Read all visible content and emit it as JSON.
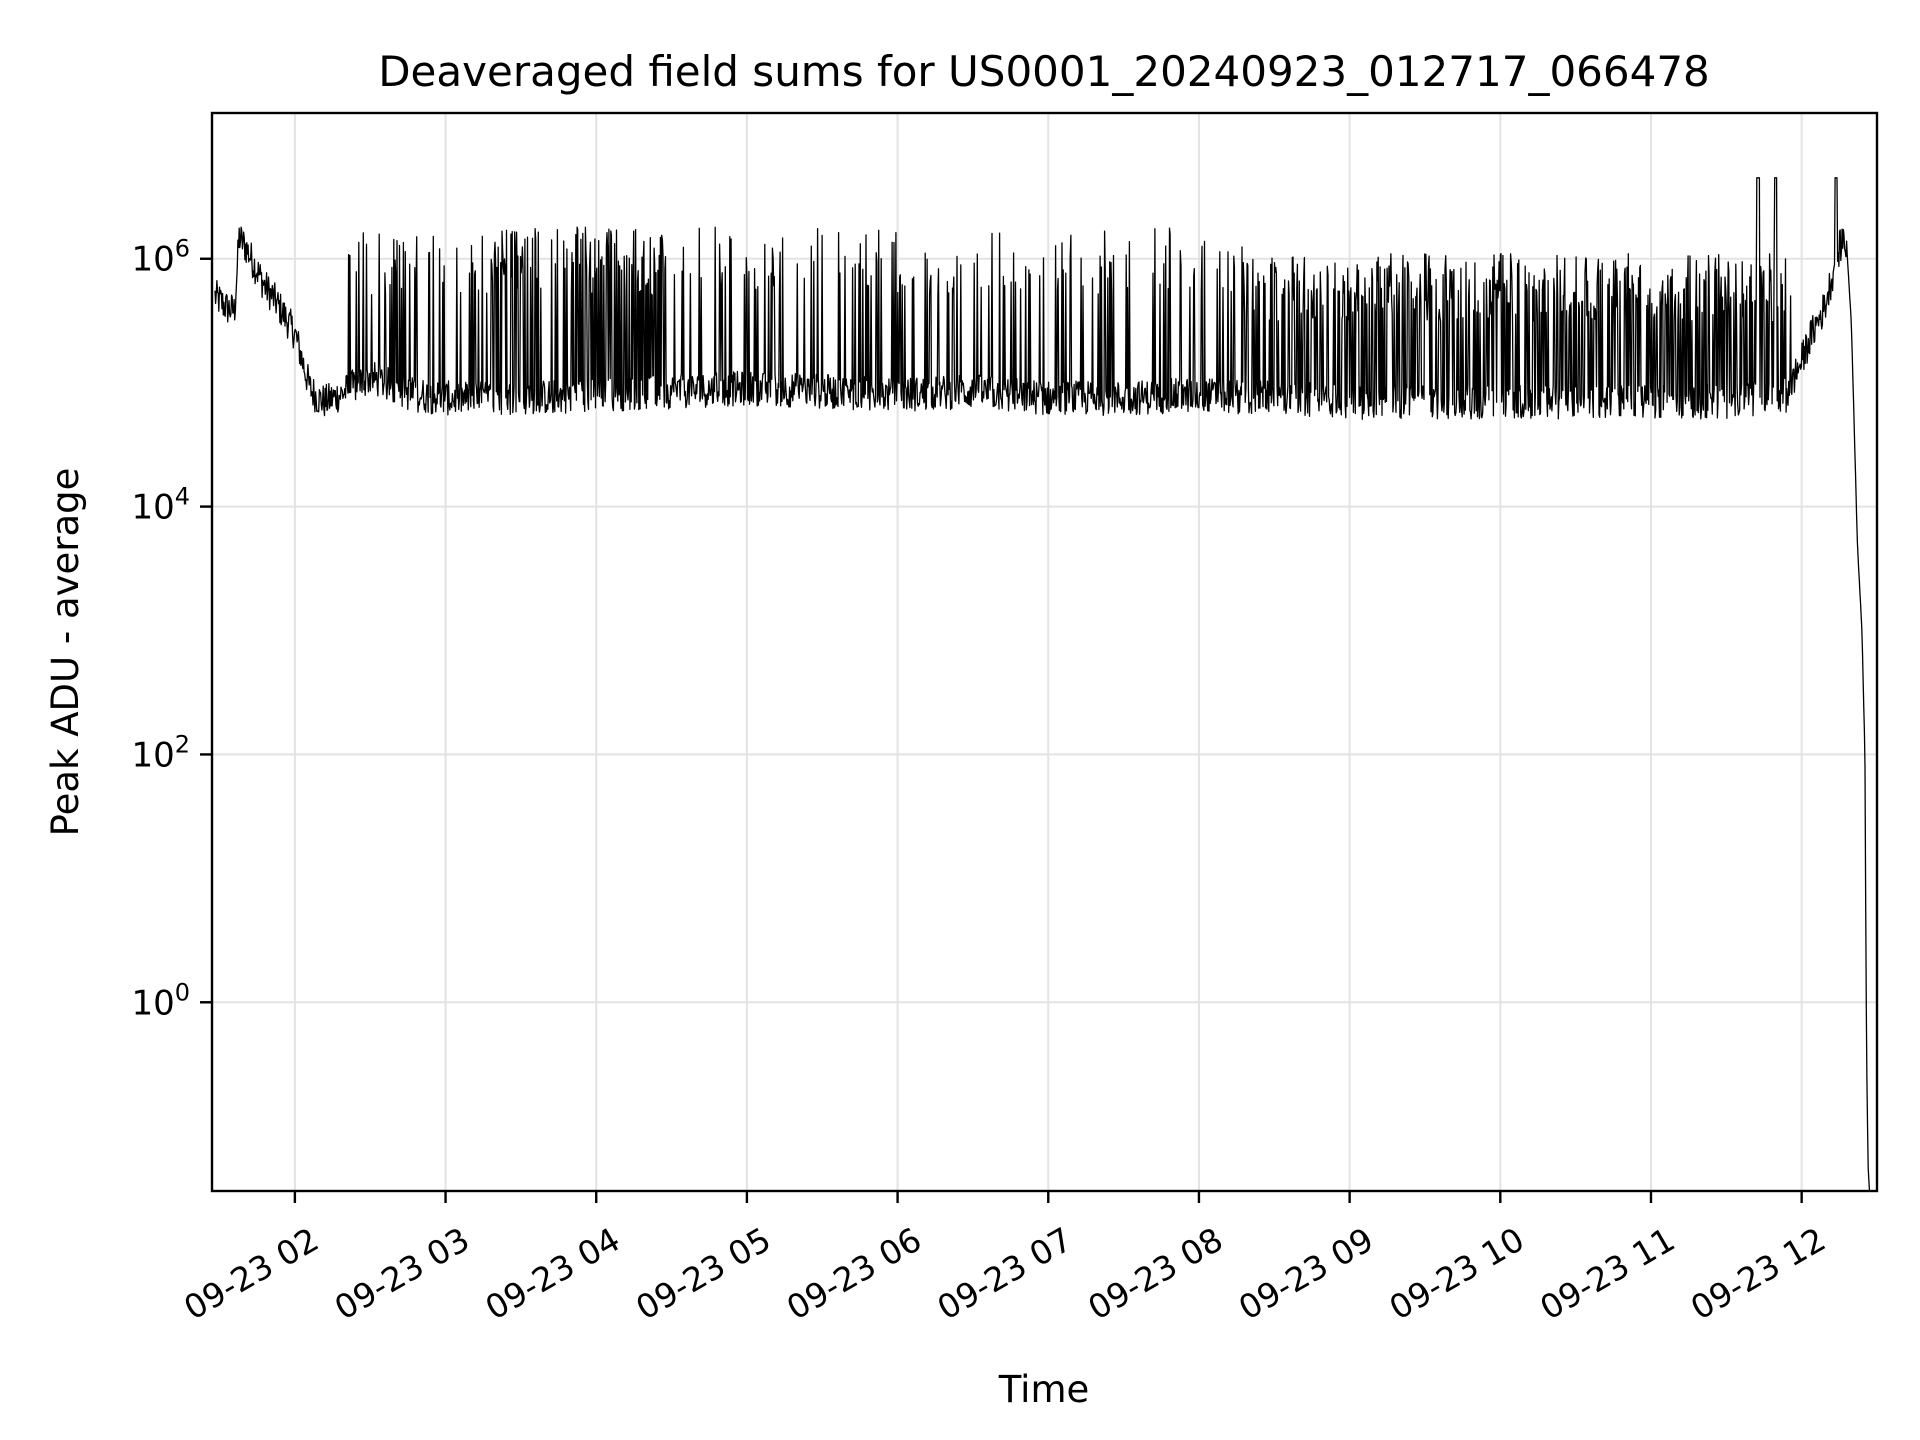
{
  "chart_data": {
    "type": "line",
    "title": "Deaveraged field sums for US0001_20240923_012717_066478",
    "xlabel": "Time",
    "ylabel": "Peak ADU - average",
    "yscale": "log",
    "ylim": [
      0.03,
      15000000
    ],
    "xlim": [
      "09-23 01:27",
      "09-23 12:30"
    ],
    "grid": true,
    "x_ticks": [
      "09-23 02",
      "09-23 03",
      "09-23 04",
      "09-23 05",
      "09-23 06",
      "09-23 07",
      "09-23 08",
      "09-23 09",
      "09-23 10",
      "09-23 11",
      "09-23 12"
    ],
    "x_tick_hours": [
      2,
      3,
      4,
      5,
      6,
      7,
      8,
      9,
      10,
      11,
      12
    ],
    "y_ticks": [
      {
        "value": 1,
        "base": "10",
        "exp": "0"
      },
      {
        "value": 100,
        "base": "10",
        "exp": "2"
      },
      {
        "value": 10000,
        "base": "10",
        "exp": "4"
      },
      {
        "value": 1000000,
        "base": "10",
        "exp": "6"
      }
    ],
    "series": [
      {
        "color": "#000000",
        "x_hours": [
          1.47,
          1.55,
          1.6,
          1.63,
          1.68,
          1.75,
          1.8,
          1.85,
          1.9,
          2.0,
          2.05,
          2.1,
          2.15,
          2.2,
          2.3,
          2.4,
          2.5,
          2.6,
          2.7,
          2.8,
          3.0,
          3.5,
          4.0,
          4.5,
          5.0,
          5.5,
          6.0,
          6.5,
          7.0,
          7.5,
          8.0,
          8.5,
          9.0,
          9.5,
          10.0,
          10.5,
          11.0,
          11.5,
          11.9,
          12.0,
          12.05,
          12.1,
          12.15,
          12.2,
          12.25,
          12.28,
          12.3,
          12.33,
          12.37,
          12.4,
          12.42,
          12.43,
          12.44,
          12.45
        ],
        "baseline": [
          500000,
          400000,
          380000,
          1500000,
          1200000,
          800000,
          600000,
          500000,
          400000,
          250000,
          150000,
          90000,
          75000,
          70000,
          80000,
          95000,
          110000,
          100000,
          85000,
          80000,
          75000,
          75000,
          80000,
          85000,
          90000,
          85000,
          80000,
          85000,
          75000,
          75000,
          80000,
          75000,
          70000,
          70000,
          70000,
          70000,
          70000,
          70000,
          80000,
          150000,
          220000,
          300000,
          400000,
          700000,
          1200000,
          1500000,
          1200000,
          300000,
          5000,
          1000,
          100,
          0.5,
          0.05,
          0.03
        ],
        "burst_peak": 1800000
      }
    ]
  }
}
